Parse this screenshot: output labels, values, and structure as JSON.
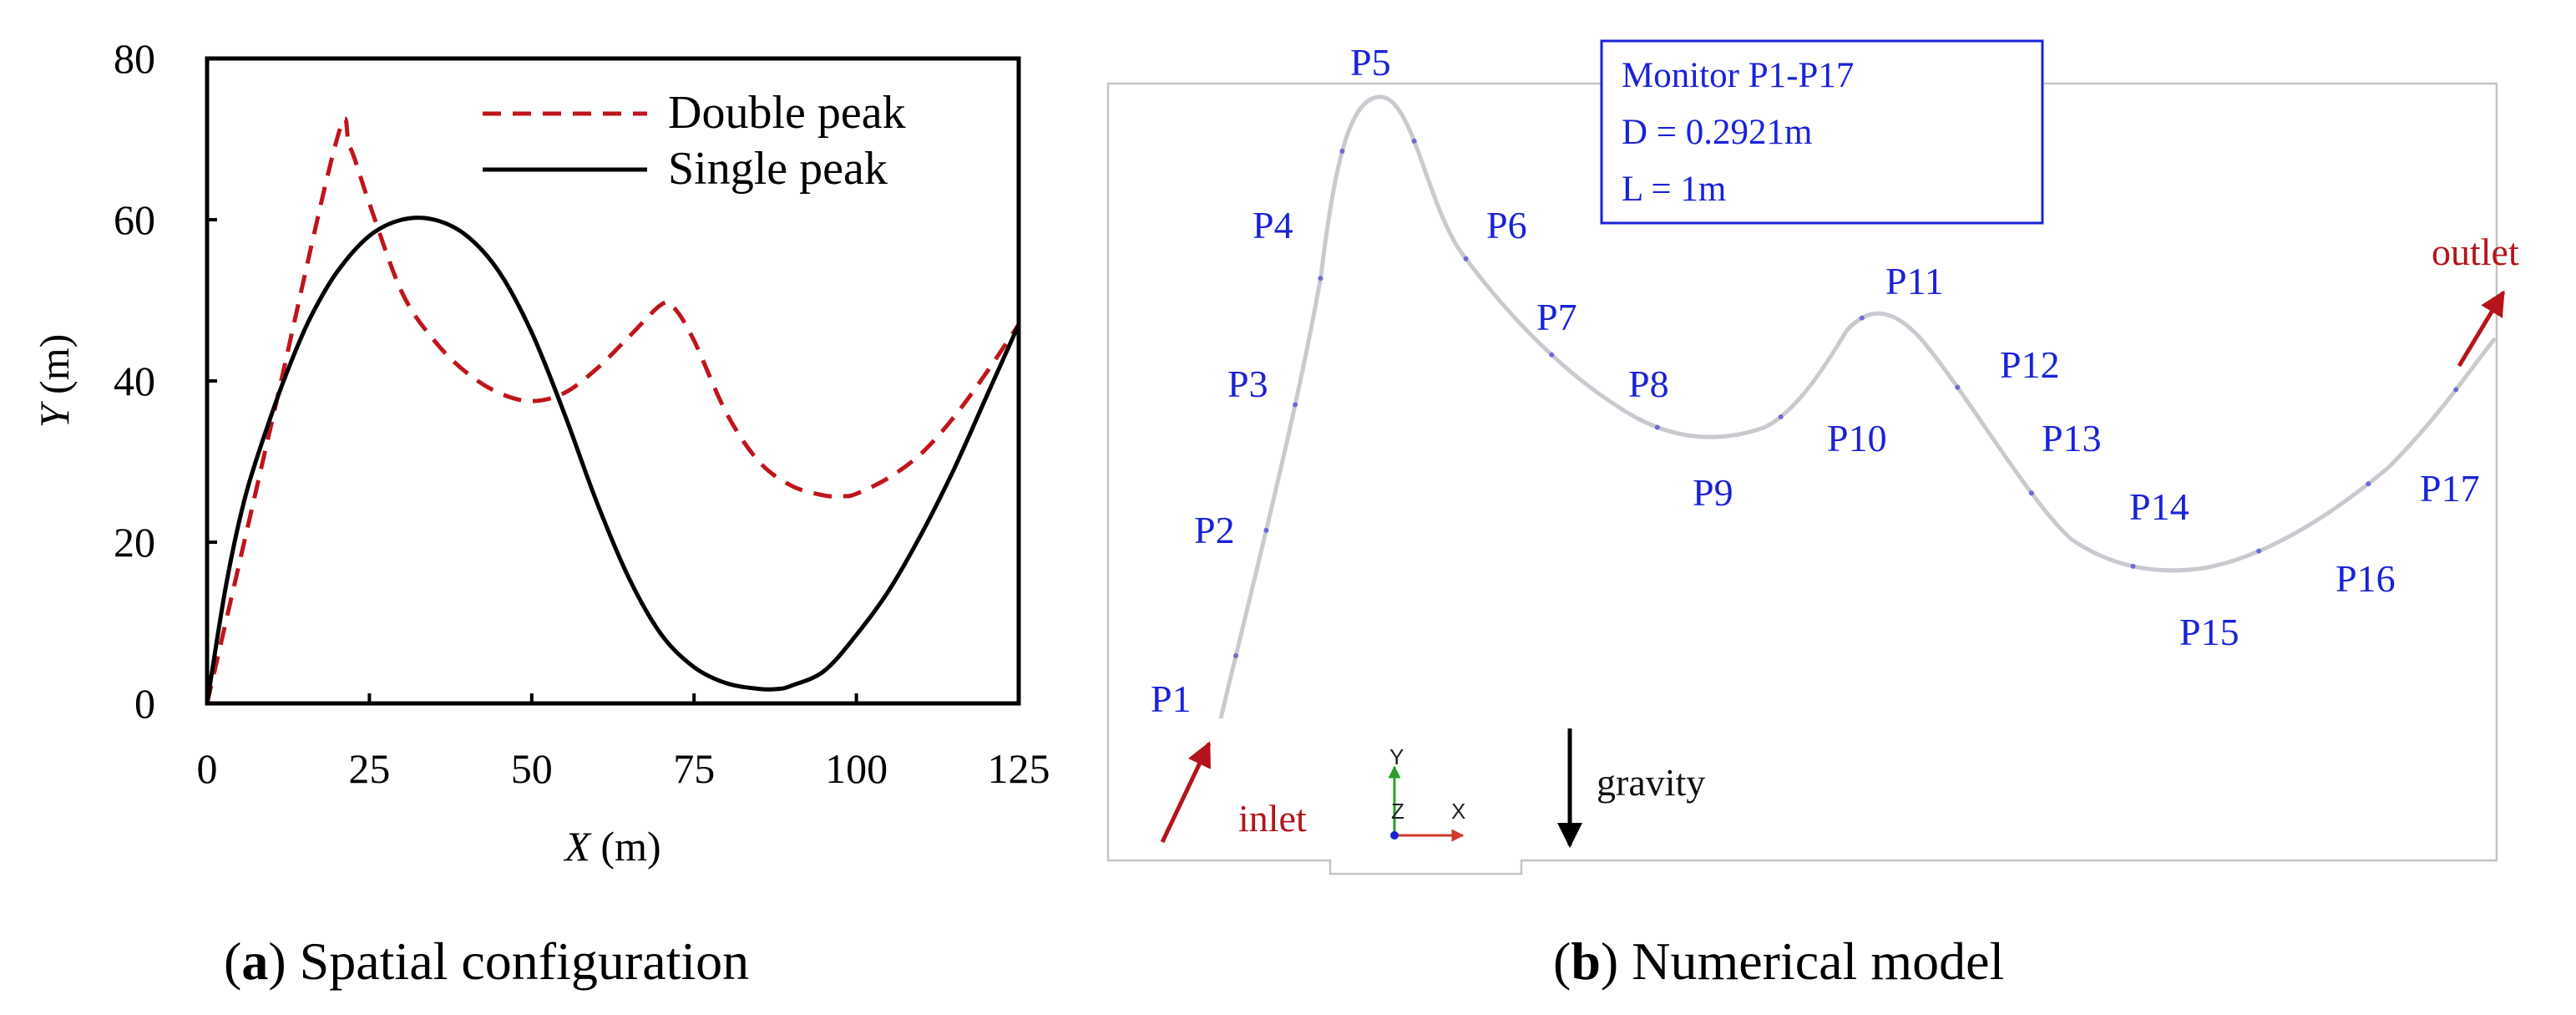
{
  "chart_data": [
    {
      "type": "line",
      "title": "",
      "xlabel_var": "X",
      "xlabel_unit": " (m)",
      "ylabel_var": "Y",
      "ylabel_unit": " (m)",
      "xlim": [
        0,
        125
      ],
      "ylim": [
        0,
        80
      ],
      "x_ticks": [
        "0",
        "25",
        "50",
        "75",
        "100",
        "125"
      ],
      "y_ticks": [
        "0",
        "20",
        "40",
        "60",
        "80"
      ],
      "grid": false,
      "legend_position": "top-right",
      "series": [
        {
          "name": "Double peak",
          "style": "dashed",
          "color": "#c0141c",
          "x": [
            0,
            10,
            20,
            22,
            25,
            30,
            35,
            40,
            45,
            50,
            55,
            60,
            65,
            70,
            72,
            75,
            80,
            85,
            90,
            95,
            98,
            100,
            105,
            110,
            115,
            120,
            125
          ],
          "y": [
            0,
            35,
            70,
            69,
            62,
            51,
            45,
            41,
            38.5,
            37.5,
            38.5,
            41.5,
            45.5,
            49.5,
            49,
            45,
            36,
            30,
            27,
            25.8,
            25.7,
            26,
            28,
            31,
            35.5,
            41,
            47
          ]
        },
        {
          "name": "Single peak",
          "style": "solid",
          "color": "#000000",
          "x": [
            0,
            3,
            6,
            10,
            13,
            16,
            20,
            25,
            30,
            35,
            40,
            45,
            50,
            55,
            60,
            65,
            70,
            75,
            80,
            85,
            88,
            90,
            95,
            100,
            105,
            110,
            115,
            120,
            125
          ],
          "y": [
            0,
            15,
            26,
            36,
            42.5,
            48,
            53.5,
            58,
            60,
            60,
            58,
            53.5,
            46,
            36,
            25,
            15.5,
            8.5,
            4.5,
            2.5,
            1.8,
            1.8,
            2.2,
            4,
            8.5,
            14,
            21,
            29,
            38,
            47
          ]
        }
      ],
      "caption_letter": "a",
      "caption_text": "Spatial configuration"
    },
    {
      "type": "diagram",
      "title": "Numerical model",
      "caption_letter": "b",
      "caption_text": "Numerical model",
      "info_box": [
        "Monitor P1-P17",
        "D = 0.2921m",
        "L = 1m"
      ],
      "monitor_points": [
        "P1",
        "P2",
        "P3",
        "P4",
        "P5",
        "P6",
        "P7",
        "P8",
        "P9",
        "P10",
        "P11",
        "P12",
        "P13",
        "P14",
        "P15",
        "P16",
        "P17"
      ],
      "inlet_label": "inlet",
      "outlet_label": "outlet",
      "gravity_label": "gravity",
      "axis_triad": [
        "Y",
        "Z",
        "X"
      ],
      "colors": {
        "point_labels": "#1a22d8",
        "flow_arrows": "#b5141a",
        "pipe": "#c9c9cf"
      }
    }
  ]
}
